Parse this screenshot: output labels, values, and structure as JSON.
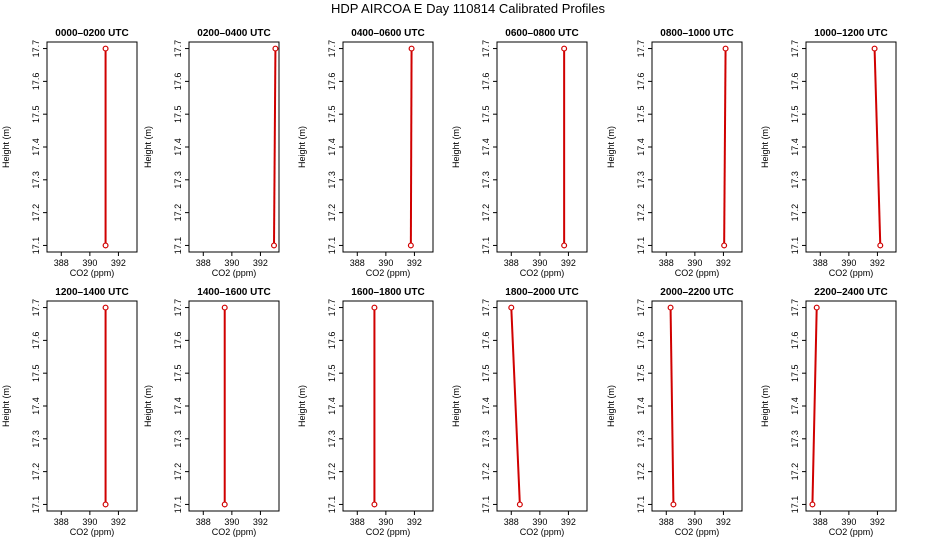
{
  "figure": {
    "title": "HDP AIRCOA E  Day 110814  Calibrated Profiles"
  },
  "chart_data": [
    {
      "type": "line",
      "title": "0000–0200 UTC",
      "xlabel": "CO2 (ppm)",
      "ylabel": "Height (m)",
      "xlim": [
        387,
        393.3
      ],
      "ylim": [
        17.08,
        17.72
      ],
      "xticks": [
        388,
        390,
        392
      ],
      "yticks": [
        17.1,
        17.2,
        17.3,
        17.4,
        17.5,
        17.6,
        17.7
      ],
      "grid": false,
      "series": [
        {
          "x": [
            391.1,
            391.1
          ],
          "y": [
            17.1,
            17.7
          ]
        }
      ]
    },
    {
      "type": "line",
      "title": "0200–0400 UTC",
      "xlabel": "CO2 (ppm)",
      "ylabel": "Height (m)",
      "xlim": [
        387,
        393.3
      ],
      "ylim": [
        17.08,
        17.72
      ],
      "xticks": [
        388,
        390,
        392
      ],
      "yticks": [
        17.1,
        17.2,
        17.3,
        17.4,
        17.5,
        17.6,
        17.7
      ],
      "grid": false,
      "series": [
        {
          "x": [
            392.95,
            393.05
          ],
          "y": [
            17.1,
            17.7
          ]
        }
      ]
    },
    {
      "type": "line",
      "title": "0400–0600 UTC",
      "xlabel": "CO2 (ppm)",
      "ylabel": "Height (m)",
      "xlim": [
        387,
        393.3
      ],
      "ylim": [
        17.08,
        17.72
      ],
      "xticks": [
        388,
        390,
        392
      ],
      "yticks": [
        17.1,
        17.2,
        17.3,
        17.4,
        17.5,
        17.6,
        17.7
      ],
      "grid": false,
      "series": [
        {
          "x": [
            391.75,
            391.8
          ],
          "y": [
            17.1,
            17.7
          ]
        }
      ]
    },
    {
      "type": "line",
      "title": "0600–0800 UTC",
      "xlabel": "CO2 (ppm)",
      "ylabel": "Height (m)",
      "xlim": [
        387,
        393.3
      ],
      "ylim": [
        17.08,
        17.72
      ],
      "xticks": [
        388,
        390,
        392
      ],
      "yticks": [
        17.1,
        17.2,
        17.3,
        17.4,
        17.5,
        17.6,
        17.7
      ],
      "grid": false,
      "series": [
        {
          "x": [
            391.7,
            391.7
          ],
          "y": [
            17.1,
            17.7
          ]
        }
      ]
    },
    {
      "type": "line",
      "title": "0800–1000 UTC",
      "xlabel": "CO2 (ppm)",
      "ylabel": "Height (m)",
      "xlim": [
        387,
        393.3
      ],
      "ylim": [
        17.08,
        17.72
      ],
      "xticks": [
        388,
        390,
        392
      ],
      "yticks": [
        17.1,
        17.2,
        17.3,
        17.4,
        17.5,
        17.6,
        17.7
      ],
      "grid": false,
      "series": [
        {
          "x": [
            392.05,
            392.15
          ],
          "y": [
            17.1,
            17.7
          ]
        }
      ]
    },
    {
      "type": "line",
      "title": "1000–1200 UTC",
      "xlabel": "CO2 (ppm)",
      "ylabel": "Height (m)",
      "xlim": [
        387,
        393.3
      ],
      "ylim": [
        17.08,
        17.72
      ],
      "xticks": [
        388,
        390,
        392
      ],
      "yticks": [
        17.1,
        17.2,
        17.3,
        17.4,
        17.5,
        17.6,
        17.7
      ],
      "grid": false,
      "series": [
        {
          "x": [
            392.2,
            391.8
          ],
          "y": [
            17.1,
            17.7
          ]
        }
      ]
    },
    {
      "type": "line",
      "title": "1200–1400 UTC",
      "xlabel": "CO2 (ppm)",
      "ylabel": "Height (m)",
      "xlim": [
        387,
        393.3
      ],
      "ylim": [
        17.08,
        17.72
      ],
      "xticks": [
        388,
        390,
        392
      ],
      "yticks": [
        17.1,
        17.2,
        17.3,
        17.4,
        17.5,
        17.6,
        17.7
      ],
      "grid": false,
      "series": [
        {
          "x": [
            391.1,
            391.1
          ],
          "y": [
            17.1,
            17.7
          ]
        }
      ]
    },
    {
      "type": "line",
      "title": "1400–1600 UTC",
      "xlabel": "CO2 (ppm)",
      "ylabel": "Height (m)",
      "xlim": [
        387,
        393.3
      ],
      "ylim": [
        17.08,
        17.72
      ],
      "xticks": [
        388,
        390,
        392
      ],
      "yticks": [
        17.1,
        17.2,
        17.3,
        17.4,
        17.5,
        17.6,
        17.7
      ],
      "grid": false,
      "series": [
        {
          "x": [
            389.5,
            389.5
          ],
          "y": [
            17.1,
            17.7
          ]
        }
      ]
    },
    {
      "type": "line",
      "title": "1600–1800 UTC",
      "xlabel": "CO2 (ppm)",
      "ylabel": "Height (m)",
      "xlim": [
        387,
        393.3
      ],
      "ylim": [
        17.08,
        17.72
      ],
      "xticks": [
        388,
        390,
        392
      ],
      "yticks": [
        17.1,
        17.2,
        17.3,
        17.4,
        17.5,
        17.6,
        17.7
      ],
      "grid": false,
      "series": [
        {
          "x": [
            389.2,
            389.2
          ],
          "y": [
            17.1,
            17.7
          ]
        }
      ]
    },
    {
      "type": "line",
      "title": "1800–2000 UTC",
      "xlabel": "CO2 (ppm)",
      "ylabel": "Height (m)",
      "xlim": [
        387,
        393.3
      ],
      "ylim": [
        17.08,
        17.72
      ],
      "xticks": [
        388,
        390,
        392
      ],
      "yticks": [
        17.1,
        17.2,
        17.3,
        17.4,
        17.5,
        17.6,
        17.7
      ],
      "grid": false,
      "series": [
        {
          "x": [
            388.6,
            388.0
          ],
          "y": [
            17.1,
            17.7
          ]
        }
      ]
    },
    {
      "type": "line",
      "title": "2000–2200 UTC",
      "xlabel": "CO2 (ppm)",
      "ylabel": "Height (m)",
      "xlim": [
        387,
        393.3
      ],
      "ylim": [
        17.08,
        17.72
      ],
      "xticks": [
        388,
        390,
        392
      ],
      "yticks": [
        17.1,
        17.2,
        17.3,
        17.4,
        17.5,
        17.6,
        17.7
      ],
      "grid": false,
      "series": [
        {
          "x": [
            388.5,
            388.3
          ],
          "y": [
            17.1,
            17.7
          ]
        }
      ]
    },
    {
      "type": "line",
      "title": "2200–2400 UTC",
      "xlabel": "CO2 (ppm)",
      "ylabel": "Height (m)",
      "xlim": [
        387,
        393.3
      ],
      "ylim": [
        17.08,
        17.72
      ],
      "xticks": [
        388,
        390,
        392
      ],
      "yticks": [
        17.1,
        17.2,
        17.3,
        17.4,
        17.5,
        17.6,
        17.7
      ],
      "grid": false,
      "series": [
        {
          "x": [
            387.45,
            387.75
          ],
          "y": [
            17.1,
            17.7
          ]
        }
      ]
    }
  ],
  "colors": {
    "profile_line": "#d00000",
    "marker": "#d00000",
    "axis": "#000000"
  }
}
